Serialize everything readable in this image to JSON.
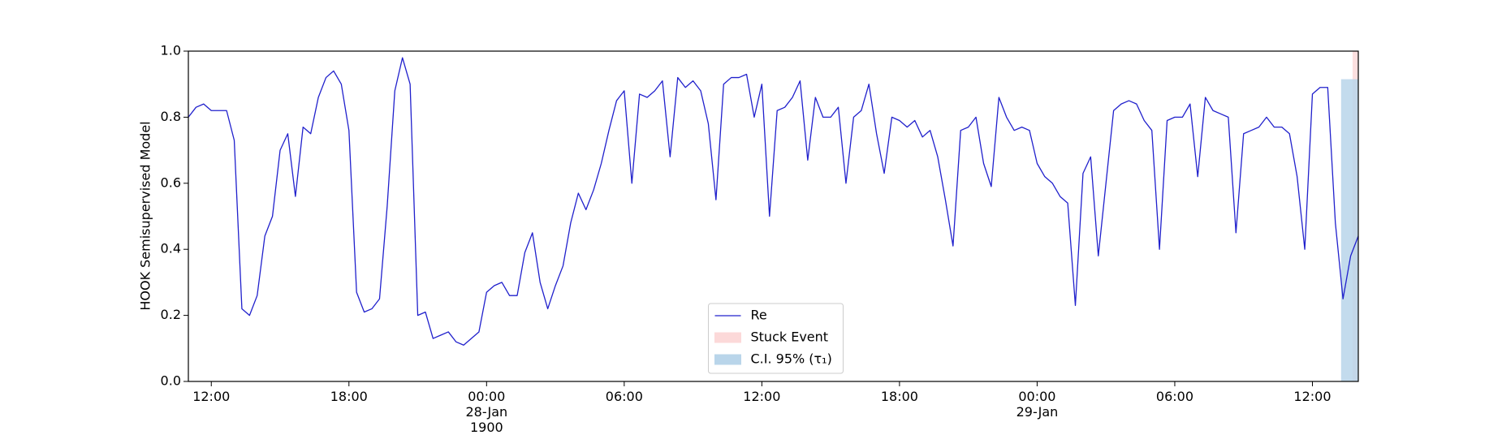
{
  "chart_data": {
    "type": "line",
    "ylabel": "HOOK Semisupervised Model",
    "xlim": [
      "1900-01-27 11:00",
      "1900-01-29 14:00"
    ],
    "xticks": [
      {
        "value": "1900-01-27 12:00",
        "label": "12:00"
      },
      {
        "value": "1900-01-27 18:00",
        "label": "18:00"
      },
      {
        "value": "1900-01-28 00:00",
        "label": "00:00\n28-Jan\n1900"
      },
      {
        "value": "1900-01-28 06:00",
        "label": "06:00"
      },
      {
        "value": "1900-01-28 12:00",
        "label": "12:00"
      },
      {
        "value": "1900-01-28 18:00",
        "label": "18:00"
      },
      {
        "value": "1900-01-29 00:00",
        "label": "00:00\n29-Jan"
      },
      {
        "value": "1900-01-29 06:00",
        "label": "06:00"
      },
      {
        "value": "1900-01-29 12:00",
        "label": "12:00"
      }
    ],
    "ylim": [
      0,
      1
    ],
    "yticks": [
      {
        "value": 0,
        "label": "0.0"
      },
      0.2,
      0.4,
      0.6,
      0.8,
      {
        "value": 1,
        "label": "1.0"
      }
    ],
    "grid": false,
    "legend": "lower center",
    "x": [
      "1900-01-27 11:00",
      "1900-01-27 11:20",
      "1900-01-27 11:40",
      "1900-01-27 12:00",
      "1900-01-27 12:20",
      "1900-01-27 12:40",
      "1900-01-27 13:00",
      "1900-01-27 13:20",
      "1900-01-27 13:40",
      "1900-01-27 14:00",
      "1900-01-27 14:20",
      "1900-01-27 14:40",
      "1900-01-27 15:00",
      "1900-01-27 15:20",
      "1900-01-27 15:40",
      "1900-01-27 16:00",
      "1900-01-27 16:20",
      "1900-01-27 16:40",
      "1900-01-27 17:00",
      "1900-01-27 17:20",
      "1900-01-27 17:40",
      "1900-01-27 18:00",
      "1900-01-27 18:20",
      "1900-01-27 18:40",
      "1900-01-27 19:00",
      "1900-01-27 19:20",
      "1900-01-27 19:40",
      "1900-01-27 20:00",
      "1900-01-27 20:20",
      "1900-01-27 20:40",
      "1900-01-27 21:00",
      "1900-01-27 21:20",
      "1900-01-27 21:40",
      "1900-01-27 22:00",
      "1900-01-27 22:20",
      "1900-01-27 22:40",
      "1900-01-27 23:00",
      "1900-01-27 23:20",
      "1900-01-27 23:40",
      "1900-01-28 00:00",
      "1900-01-28 00:20",
      "1900-01-28 00:40",
      "1900-01-28 01:00",
      "1900-01-28 01:20",
      "1900-01-28 01:40",
      "1900-01-28 02:00",
      "1900-01-28 02:20",
      "1900-01-28 02:40",
      "1900-01-28 03:00",
      "1900-01-28 03:20",
      "1900-01-28 03:40",
      "1900-01-28 04:00",
      "1900-01-28 04:20",
      "1900-01-28 04:40",
      "1900-01-28 05:00",
      "1900-01-28 05:20",
      "1900-01-28 05:40",
      "1900-01-28 06:00",
      "1900-01-28 06:20",
      "1900-01-28 06:40",
      "1900-01-28 07:00",
      "1900-01-28 07:20",
      "1900-01-28 07:40",
      "1900-01-28 08:00",
      "1900-01-28 08:20",
      "1900-01-28 08:40",
      "1900-01-28 09:00",
      "1900-01-28 09:20",
      "1900-01-28 09:40",
      "1900-01-28 10:00",
      "1900-01-28 10:20",
      "1900-01-28 10:40",
      "1900-01-28 11:00",
      "1900-01-28 11:20",
      "1900-01-28 11:40",
      "1900-01-28 12:00",
      "1900-01-28 12:20",
      "1900-01-28 12:40",
      "1900-01-28 13:00",
      "1900-01-28 13:20",
      "1900-01-28 13:40",
      "1900-01-28 14:00",
      "1900-01-28 14:20",
      "1900-01-28 14:40",
      "1900-01-28 15:00",
      "1900-01-28 15:20",
      "1900-01-28 15:40",
      "1900-01-28 16:00",
      "1900-01-28 16:20",
      "1900-01-28 16:40",
      "1900-01-28 17:00",
      "1900-01-28 17:20",
      "1900-01-28 17:40",
      "1900-01-28 18:00",
      "1900-01-28 18:20",
      "1900-01-28 18:40",
      "1900-01-28 19:00",
      "1900-01-28 19:20",
      "1900-01-28 19:40",
      "1900-01-28 20:00",
      "1900-01-28 20:20",
      "1900-01-28 20:40",
      "1900-01-28 21:00",
      "1900-01-28 21:20",
      "1900-01-28 21:40",
      "1900-01-28 22:00",
      "1900-01-28 22:20",
      "1900-01-28 22:40",
      "1900-01-28 23:00",
      "1900-01-28 23:20",
      "1900-01-28 23:40",
      "1900-01-29 00:00",
      "1900-01-29 00:20",
      "1900-01-29 00:40",
      "1900-01-29 01:00",
      "1900-01-29 01:20",
      "1900-01-29 01:40",
      "1900-01-29 02:00",
      "1900-01-29 02:20",
      "1900-01-29 02:40",
      "1900-01-29 03:00",
      "1900-01-29 03:20",
      "1900-01-29 03:40",
      "1900-01-29 04:00",
      "1900-01-29 04:20",
      "1900-01-29 04:40",
      "1900-01-29 05:00",
      "1900-01-29 05:20",
      "1900-01-29 05:40",
      "1900-01-29 06:00",
      "1900-01-29 06:20",
      "1900-01-29 06:40",
      "1900-01-29 07:00",
      "1900-01-29 07:20",
      "1900-01-29 07:40",
      "1900-01-29 08:00",
      "1900-01-29 08:20",
      "1900-01-29 08:40",
      "1900-01-29 09:00",
      "1900-01-29 09:20",
      "1900-01-29 09:40",
      "1900-01-29 10:00",
      "1900-01-29 10:20",
      "1900-01-29 10:40",
      "1900-01-29 11:00",
      "1900-01-29 11:20",
      "1900-01-29 11:40",
      "1900-01-29 12:00",
      "1900-01-29 12:20",
      "1900-01-29 12:40",
      "1900-01-29 13:00",
      "1900-01-29 13:20",
      "1900-01-29 13:40",
      "1900-01-29 14:00"
    ],
    "series": [
      {
        "name": "Re",
        "color": "#2020cc",
        "values": [
          0.8,
          0.83,
          0.84,
          0.82,
          0.82,
          0.82,
          0.73,
          0.22,
          0.2,
          0.26,
          0.44,
          0.5,
          0.7,
          0.75,
          0.56,
          0.77,
          0.75,
          0.86,
          0.92,
          0.94,
          0.9,
          0.76,
          0.27,
          0.21,
          0.22,
          0.25,
          0.53,
          0.88,
          0.98,
          0.9,
          0.2,
          0.21,
          0.13,
          0.14,
          0.15,
          0.12,
          0.11,
          0.13,
          0.15,
          0.27,
          0.29,
          0.3,
          0.26,
          0.26,
          0.39,
          0.45,
          0.3,
          0.22,
          0.29,
          0.35,
          0.48,
          0.57,
          0.52,
          0.58,
          0.66,
          0.76,
          0.85,
          0.88,
          0.6,
          0.87,
          0.86,
          0.88,
          0.91,
          0.68,
          0.92,
          0.89,
          0.91,
          0.88,
          0.78,
          0.55,
          0.9,
          0.92,
          0.92,
          0.93,
          0.8,
          0.9,
          0.5,
          0.82,
          0.83,
          0.86,
          0.91,
          0.67,
          0.86,
          0.8,
          0.8,
          0.83,
          0.6,
          0.8,
          0.82,
          0.9,
          0.75,
          0.63,
          0.8,
          0.79,
          0.77,
          0.79,
          0.74,
          0.76,
          0.68,
          0.55,
          0.41,
          0.76,
          0.77,
          0.8,
          0.66,
          0.59,
          0.86,
          0.8,
          0.76,
          0.77,
          0.76,
          0.66,
          0.62,
          0.6,
          0.56,
          0.54,
          0.23,
          0.63,
          0.68,
          0.38,
          0.6,
          0.82,
          0.84,
          0.85,
          0.84,
          0.79,
          0.76,
          0.4,
          0.79,
          0.8,
          0.8,
          0.84,
          0.62,
          0.86,
          0.82,
          0.81,
          0.8,
          0.45,
          0.75,
          0.76,
          0.77,
          0.8,
          0.77,
          0.77,
          0.75,
          0.62,
          0.4,
          0.87,
          0.89,
          0.89,
          0.48,
          0.25,
          0.38,
          0.44
        ]
      }
    ],
    "spans": [
      {
        "name": "Stuck Event",
        "color": "#fcd9d9",
        "start": "1900-01-29 13:45",
        "end": "1900-01-29 14:00"
      },
      {
        "name": "C.I. 95% (τ₁)",
        "color": "#b9d5ea",
        "start": "1900-01-29 13:15",
        "end": "1900-01-29 14:00",
        "ymax": 0.915
      }
    ]
  }
}
